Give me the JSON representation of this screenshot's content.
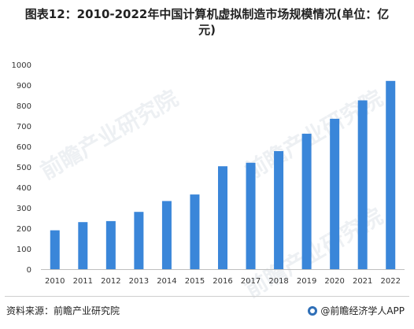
{
  "title": {
    "line1": "图表12：2010-2022年中国计算机虚拟制造市场规模情况(单位：亿",
    "line2": "元)"
  },
  "watermark": "前瞻产业研究院",
  "source": "资料来源：前瞻产业研究院",
  "brand": "@前瞻经济学人APP",
  "colors": {
    "bar": "#3a86d9",
    "axis": "#bfbfbf",
    "text": "#333333"
  },
  "chart_data": {
    "type": "bar",
    "categories": [
      "2010",
      "2011",
      "2012",
      "2013",
      "2014",
      "2015",
      "2016",
      "2017",
      "2018",
      "2019",
      "2020",
      "2021",
      "2022"
    ],
    "values": [
      190,
      230,
      235,
      280,
      333,
      365,
      503,
      520,
      577,
      662,
      735,
      825,
      920
    ],
    "ylim": [
      0,
      1000
    ],
    "yticks": [
      0,
      100,
      200,
      300,
      400,
      500,
      600,
      700,
      800,
      900,
      1000
    ],
    "grid": false,
    "legend": "none"
  }
}
